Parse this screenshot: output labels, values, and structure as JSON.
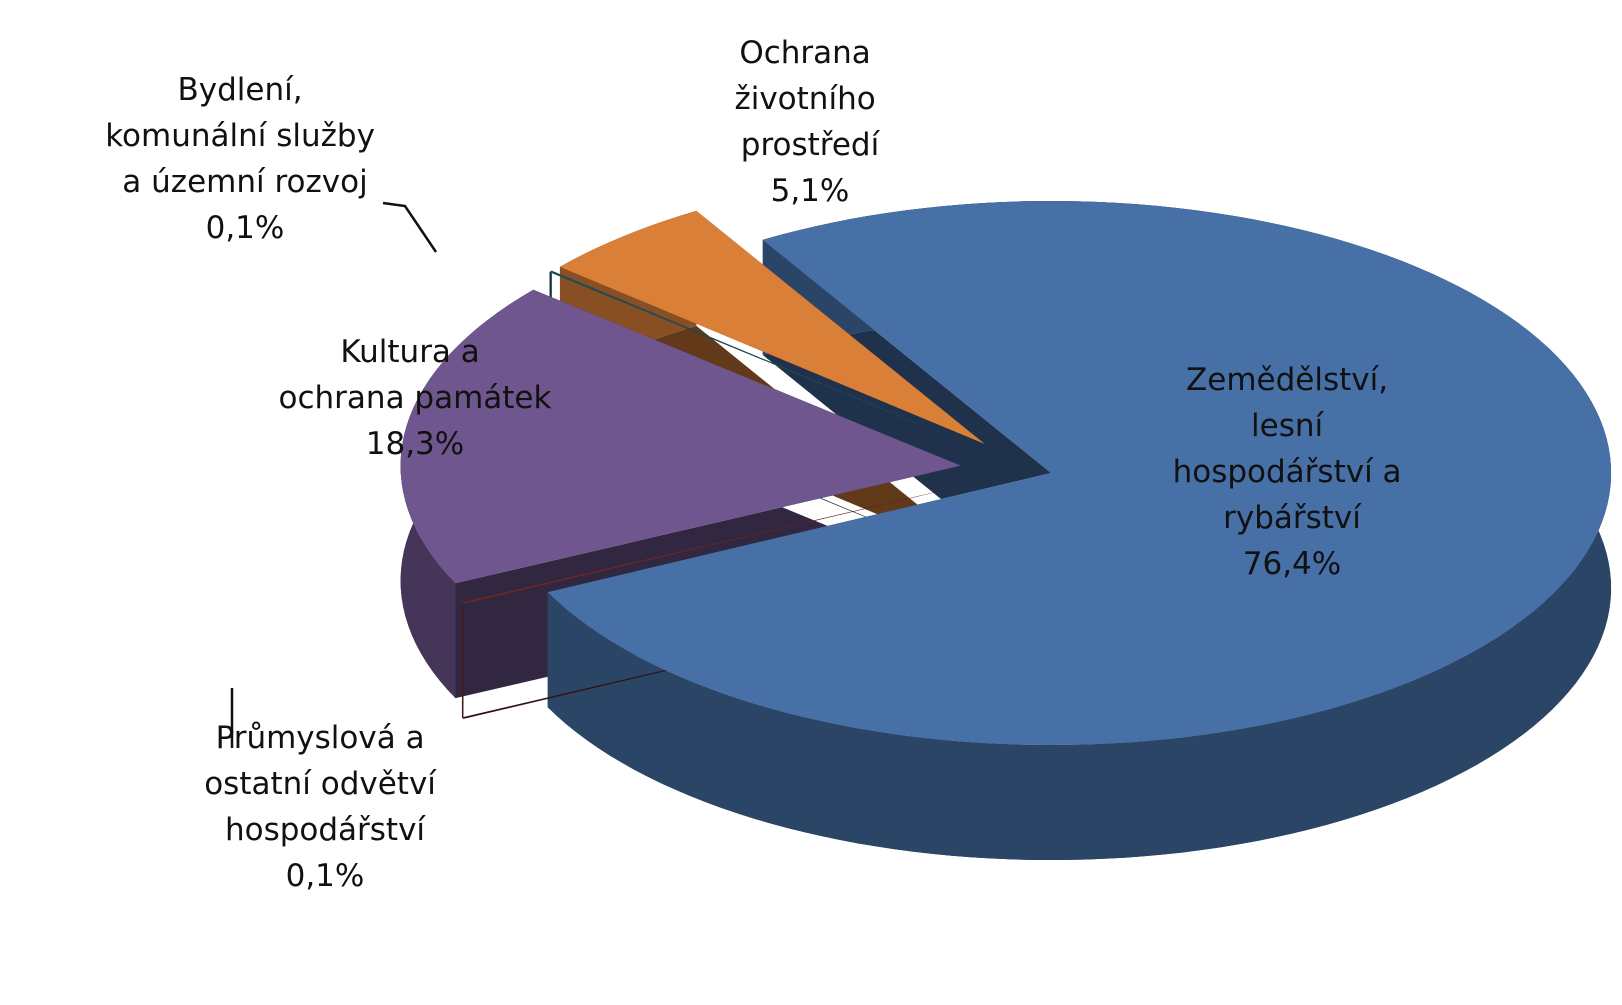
{
  "chart_data": {
    "type": "pie3d",
    "categories": [
      "Zemědělství, lesní hospodářství a rybářství",
      "Průmyslová a ostatní odvětví hospodářství",
      "Kultura a ochrana památek",
      "Bydlení, komunální služby a územní rozvoj",
      "Ochrana životního prostředí"
    ],
    "values": [
      76.4,
      0.1,
      18.3,
      0.1,
      5.1
    ],
    "value_labels": [
      "76,4%",
      "0,1%",
      "18,3%",
      "0,1%",
      "5,1%"
    ],
    "colors": [
      "#4670a6",
      "#6e2828",
      "#70568e",
      "#1f4e5a",
      "#da7f38"
    ]
  }
}
